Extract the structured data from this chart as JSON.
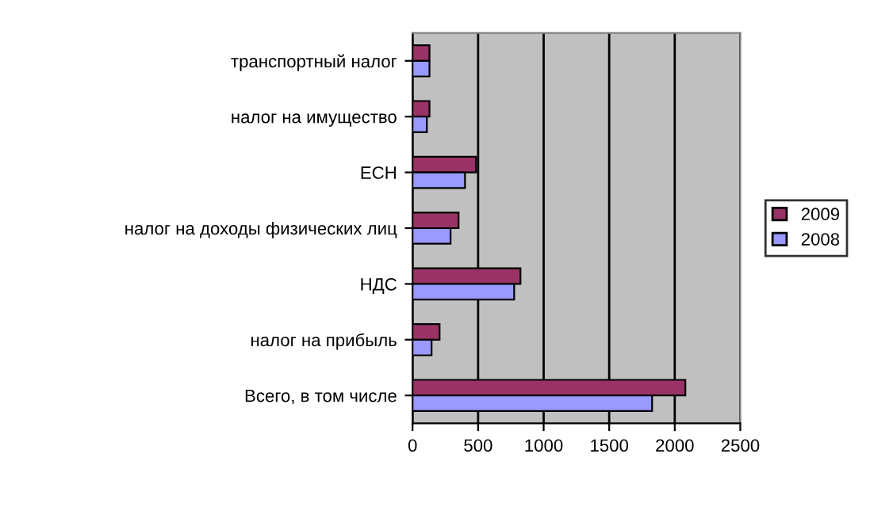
{
  "chart_data": {
    "type": "bar",
    "orientation": "horizontal",
    "categories": [
      "транспортный налог",
      "налог на имущество",
      "ЕСН",
      "налог на доходы физических лиц",
      "НДС",
      "налог на прибыль",
      "Всего, в том числе"
    ],
    "series": [
      {
        "name": "2009",
        "color": "#993366",
        "values": [
          129,
          129,
          484,
          351,
          823,
          206,
          2081
        ]
      },
      {
        "name": "2008",
        "color": "#9999ff",
        "values": [
          129,
          109,
          400,
          290,
          775,
          145,
          1827
        ]
      }
    ],
    "xlim": [
      0,
      2500
    ],
    "xticks": [
      0,
      500,
      1000,
      1500,
      2000,
      2500
    ],
    "grid": "x",
    "legend": "right"
  }
}
